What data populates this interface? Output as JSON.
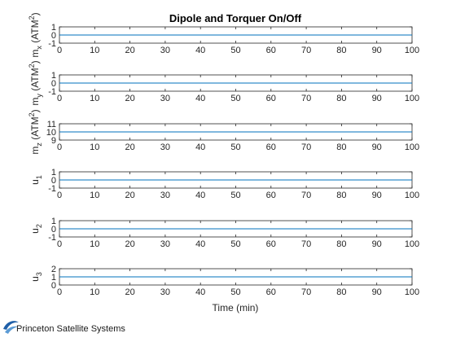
{
  "chart_data": {
    "type": "line",
    "title": "Dipole and Torquer On/Off",
    "xlabel": "Time (min)",
    "xlim": [
      0,
      100
    ],
    "xticks": [
      "0",
      "10",
      "20",
      "30",
      "40",
      "50",
      "60",
      "70",
      "80",
      "90",
      "100"
    ],
    "line_color": "#0072BD",
    "panels": [
      {
        "id": "mx",
        "ylabel_main": "m",
        "ylabel_sub": "x",
        "ylabel_unit": " (ATM",
        "ylabel_sup": "2",
        "ylabel_close": ")",
        "ylim": [
          -1,
          1
        ],
        "yticks": [
          "-1",
          "0",
          "1"
        ],
        "x": [
          0,
          100
        ],
        "y": [
          0,
          0
        ]
      },
      {
        "id": "my",
        "ylabel_main": "m",
        "ylabel_sub": "y",
        "ylabel_unit": " (ATM",
        "ylabel_sup": "2",
        "ylabel_close": ")",
        "ylim": [
          -1,
          1
        ],
        "yticks": [
          "-1",
          "0",
          "1"
        ],
        "x": [
          0,
          100
        ],
        "y": [
          0,
          0
        ]
      },
      {
        "id": "mz",
        "ylabel_main": "m",
        "ylabel_sub": "z",
        "ylabel_unit": " (ATM",
        "ylabel_sup": "2",
        "ylabel_close": ")",
        "ylim": [
          9,
          11
        ],
        "yticks": [
          "9",
          "10",
          "11"
        ],
        "x": [
          0,
          100
        ],
        "y": [
          10,
          10
        ]
      },
      {
        "id": "u1",
        "ylabel_main": "u",
        "ylabel_sub": "1",
        "ylabel_unit": "",
        "ylabel_sup": "",
        "ylabel_close": "",
        "ylim": [
          -1,
          1
        ],
        "yticks": [
          "-1",
          "0",
          "1"
        ],
        "x": [
          0,
          100
        ],
        "y": [
          0,
          0
        ]
      },
      {
        "id": "u2",
        "ylabel_main": "u",
        "ylabel_sub": "2",
        "ylabel_unit": "",
        "ylabel_sup": "",
        "ylabel_close": "",
        "ylim": [
          -1,
          1
        ],
        "yticks": [
          "-1",
          "0",
          "1"
        ],
        "x": [
          0,
          100
        ],
        "y": [
          0,
          0
        ]
      },
      {
        "id": "u3",
        "ylabel_main": "u",
        "ylabel_sub": "3",
        "ylabel_unit": "",
        "ylabel_sup": "",
        "ylabel_close": "",
        "ylim": [
          0,
          2
        ],
        "yticks": [
          "0",
          "1",
          "2"
        ],
        "x": [
          0,
          100
        ],
        "y": [
          1,
          1
        ]
      }
    ]
  },
  "branding": {
    "text": "Princeton Satellite Systems",
    "logo_icon": "psslogo-icon"
  }
}
